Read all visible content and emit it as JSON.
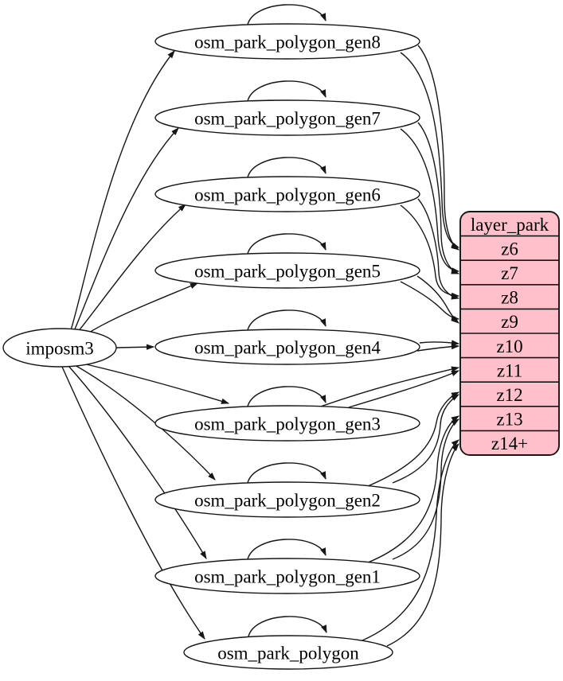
{
  "graph": {
    "source": {
      "id": "imposm3",
      "label": "imposm3"
    },
    "tables": [
      {
        "id": "osm_park_polygon_gen8",
        "label": "osm_park_polygon_gen8"
      },
      {
        "id": "osm_park_polygon_gen7",
        "label": "osm_park_polygon_gen7"
      },
      {
        "id": "osm_park_polygon_gen6",
        "label": "osm_park_polygon_gen6"
      },
      {
        "id": "osm_park_polygon_gen5",
        "label": "osm_park_polygon_gen5"
      },
      {
        "id": "osm_park_polygon_gen4",
        "label": "osm_park_polygon_gen4"
      },
      {
        "id": "osm_park_polygon_gen3",
        "label": "osm_park_polygon_gen3"
      },
      {
        "id": "osm_park_polygon_gen2",
        "label": "osm_park_polygon_gen2"
      },
      {
        "id": "osm_park_polygon_gen1",
        "label": "osm_park_polygon_gen1"
      },
      {
        "id": "osm_park_polygon",
        "label": "osm_park_polygon"
      }
    ],
    "layer": {
      "title": "layer_park",
      "rows": [
        "z6",
        "z7",
        "z8",
        "z9",
        "z10",
        "z11",
        "z12",
        "z13",
        "z14+"
      ]
    },
    "edges": {
      "from_source": [
        "osm_park_polygon_gen8",
        "osm_park_polygon_gen7",
        "osm_park_polygon_gen6",
        "osm_park_polygon_gen5",
        "osm_park_polygon_gen4",
        "osm_park_polygon_gen3",
        "osm_park_polygon_gen2",
        "osm_park_polygon_gen1",
        "osm_park_polygon"
      ],
      "self_loops": [
        "osm_park_polygon_gen8",
        "osm_park_polygon_gen7",
        "osm_park_polygon_gen6",
        "osm_park_polygon_gen5",
        "osm_park_polygon_gen4",
        "osm_park_polygon_gen3",
        "osm_park_polygon_gen2",
        "osm_park_polygon_gen1",
        "osm_park_polygon"
      ],
      "table_to_row": [
        {
          "from": "osm_park_polygon_gen8",
          "to": "z6",
          "lines": 2
        },
        {
          "from": "osm_park_polygon_gen7",
          "to": "z7",
          "lines": 2
        },
        {
          "from": "osm_park_polygon_gen6",
          "to": "z8",
          "lines": 2
        },
        {
          "from": "osm_park_polygon_gen5",
          "to": "z9",
          "lines": 2
        },
        {
          "from": "osm_park_polygon_gen4",
          "to": "z10",
          "lines": 2
        },
        {
          "from": "osm_park_polygon_gen3",
          "to": "z11",
          "lines": 2
        },
        {
          "from": "osm_park_polygon_gen2",
          "to": "z12",
          "lines": 2
        },
        {
          "from": "osm_park_polygon_gen1",
          "to": "z13",
          "lines": 2
        },
        {
          "from": "osm_park_polygon",
          "to": "z14+",
          "lines": 2
        }
      ]
    },
    "colors": {
      "background": "#ffffff",
      "node_fill": "#ffffff",
      "layer_fill": "#ffc0cb",
      "stroke": "#161616",
      "text": "#000000"
    }
  }
}
